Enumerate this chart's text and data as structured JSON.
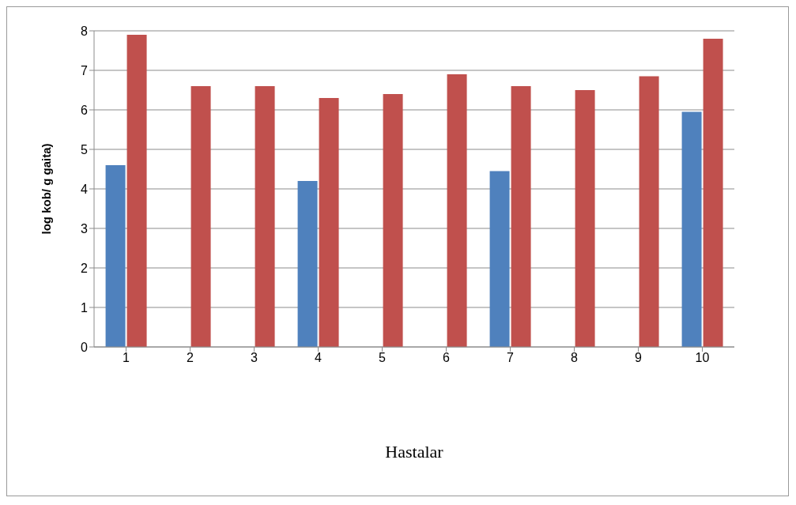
{
  "chart_data": {
    "type": "bar",
    "xlabel": "Hastalar",
    "ylabel": "log kob/ g gaita)",
    "categories": [
      "1",
      "2",
      "3",
      "4",
      "5",
      "6",
      "7",
      "8",
      "9",
      "10"
    ],
    "series": [
      {
        "color": "#4f81bd",
        "values": [
          4.6,
          0,
          0,
          4.2,
          0,
          0,
          4.45,
          0,
          0,
          5.95
        ]
      },
      {
        "color": "#c0504d",
        "values": [
          7.9,
          6.6,
          6.6,
          6.3,
          6.4,
          6.9,
          6.6,
          6.5,
          6.85,
          7.8
        ]
      }
    ],
    "ylim": [
      0,
      8
    ],
    "yticks": [
      0,
      1,
      2,
      3,
      4,
      5,
      6,
      7,
      8
    ],
    "grid": "y"
  }
}
